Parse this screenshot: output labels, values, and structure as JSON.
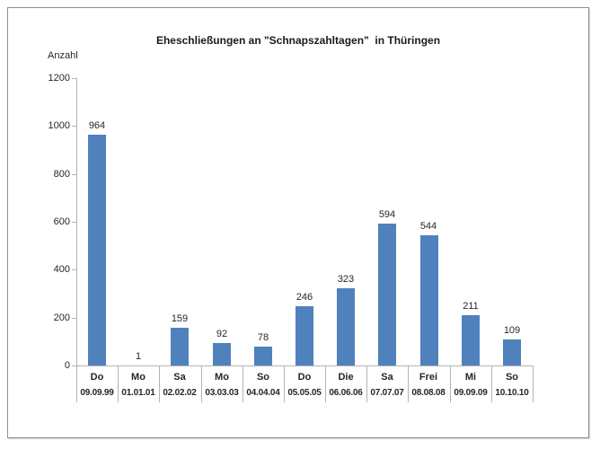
{
  "chart_data": {
    "type": "bar",
    "title": "Eheschließungen an \"Schnapszahltagen\"  in Thüringen",
    "ylabel": "Anzahl",
    "xlabel": "",
    "categories": [
      {
        "day": "Do",
        "date": "09.09.99"
      },
      {
        "day": "Mo",
        "date": "01.01.01"
      },
      {
        "day": "Sa",
        "date": "02.02.02"
      },
      {
        "day": "Mo",
        "date": "03.03.03"
      },
      {
        "day": "So",
        "date": "04.04.04"
      },
      {
        "day": "Do",
        "date": "05.05.05"
      },
      {
        "day": "Die",
        "date": "06.06.06"
      },
      {
        "day": "Sa",
        "date": "07.07.07"
      },
      {
        "day": "Frei",
        "date": "08.08.08"
      },
      {
        "day": "Mi",
        "date": "09.09.09"
      },
      {
        "day": "So",
        "date": "10.10.10"
      }
    ],
    "values": [
      964,
      1,
      159,
      92,
      78,
      246,
      323,
      594,
      544,
      211,
      109
    ],
    "data_labels_visible": true,
    "ylim": [
      0,
      1200
    ],
    "yticks": [
      0,
      200,
      400,
      600,
      800,
      1000,
      1200
    ],
    "grid": false,
    "legend": "none",
    "bar_color": "#4f81bd",
    "axis_color": "#b3b3b3",
    "text_color": "#262626"
  }
}
